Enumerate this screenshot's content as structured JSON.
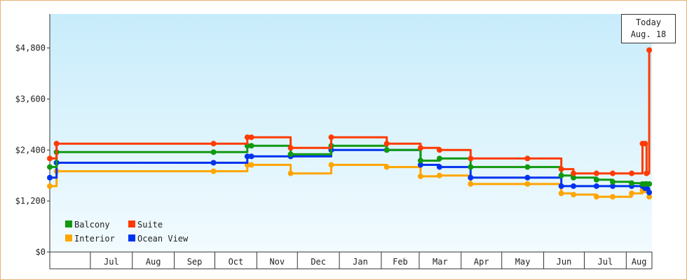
{
  "chart_data": {
    "type": "line",
    "x_dates": [
      "2024-06-01",
      "2024-06-06",
      "2024-09-30",
      "2024-10-25",
      "2024-10-28",
      "2024-11-26",
      "2024-12-26",
      "2025-02-05",
      "2025-03-02",
      "2025-03-16",
      "2025-04-08",
      "2025-05-20",
      "2025-06-14",
      "2025-06-23",
      "2025-07-10",
      "2025-07-22",
      "2025-08-05",
      "2025-08-13",
      "2025-08-15",
      "2025-08-16",
      "2025-08-18"
    ],
    "x_tick_labels": [
      "Jul",
      "Aug",
      "Sep",
      "Oct",
      "Nov",
      "Dec",
      "Jan",
      "Feb",
      "Mar",
      "Apr",
      "May",
      "Jun",
      "Jul",
      "Aug"
    ],
    "x_tick_dates": [
      "2024-07-01",
      "2024-08-01",
      "2024-09-01",
      "2024-10-01",
      "2024-11-01",
      "2024-12-01",
      "2025-01-01",
      "2025-02-01",
      "2025-03-01",
      "2025-04-01",
      "2025-05-01",
      "2025-06-01",
      "2025-07-01",
      "2025-08-01"
    ],
    "y_tick_labels": [
      "$0",
      "$1,200",
      "$2,400",
      "$3,600",
      "$4,800"
    ],
    "ylim": [
      0,
      5600
    ],
    "today_marker": {
      "line1": "Today",
      "line2": "Aug. 18"
    },
    "series": [
      {
        "name": "Suite",
        "color": "#ff3a00",
        "values": [
          2200,
          2550,
          2550,
          2700,
          2700,
          2450,
          2700,
          2550,
          2450,
          2400,
          2200,
          2200,
          1950,
          1850,
          1850,
          1850,
          1850,
          2550,
          2550,
          1850,
          4750
        ]
      },
      {
        "name": "Balcony",
        "color": "#119911",
        "values": [
          2000,
          2350,
          2350,
          2500,
          2500,
          2300,
          2500,
          2400,
          2150,
          2200,
          2000,
          2000,
          1800,
          1750,
          1700,
          1650,
          1620,
          1600,
          1600,
          1600,
          1600
        ]
      },
      {
        "name": "Ocean View",
        "color": "#0033ee",
        "values": [
          1750,
          2100,
          2100,
          2250,
          2250,
          2250,
          2400,
          2400,
          2050,
          2000,
          1750,
          1750,
          1550,
          1550,
          1550,
          1550,
          1550,
          1550,
          1500,
          1500,
          1400
        ]
      },
      {
        "name": "Interior",
        "color": "#ffa500",
        "values": [
          1550,
          1900,
          1900,
          2050,
          2050,
          1850,
          2050,
          2000,
          1780,
          1800,
          1600,
          1600,
          1380,
          1350,
          1300,
          1300,
          1380,
          1450,
          1450,
          1450,
          1300
        ]
      }
    ],
    "legend": [
      {
        "label": "Balcony",
        "color": "#119911"
      },
      {
        "label": "Suite",
        "color": "#ff3a00"
      },
      {
        "label": "Interior",
        "color": "#ffa500"
      },
      {
        "label": "Ocean View",
        "color": "#0033ee"
      }
    ]
  }
}
